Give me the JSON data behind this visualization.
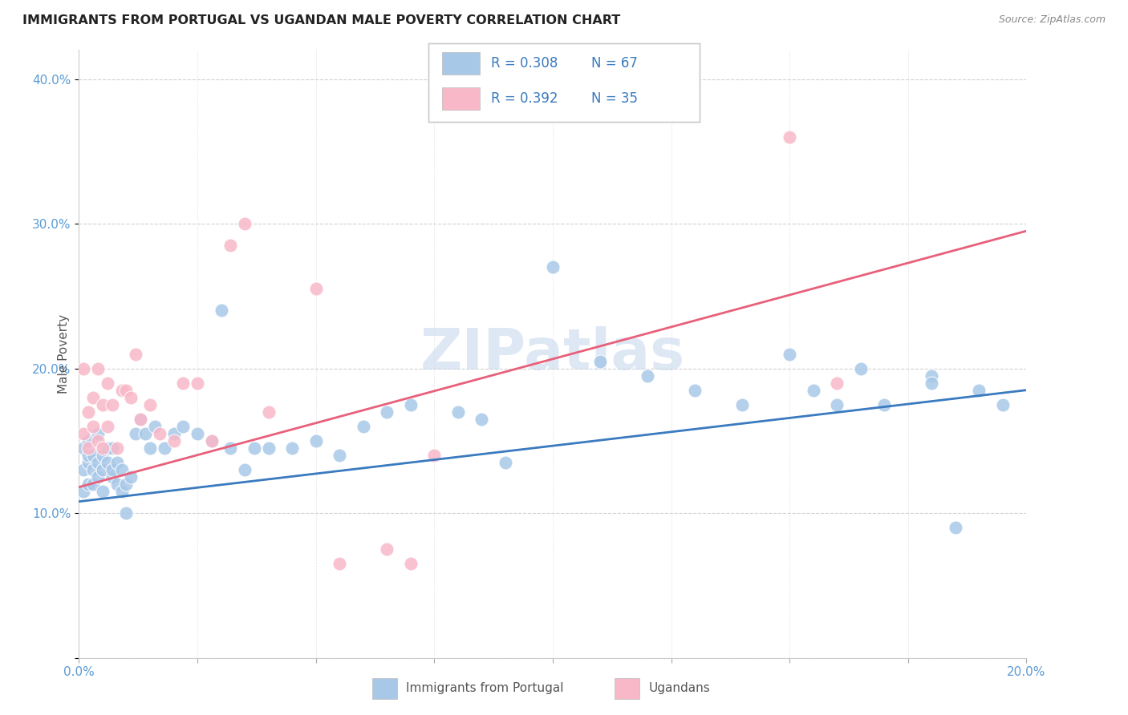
{
  "title": "IMMIGRANTS FROM PORTUGAL VS UGANDAN MALE POVERTY CORRELATION CHART",
  "source": "Source: ZipAtlas.com",
  "ylabel": "Male Poverty",
  "ytick_positions": [
    0.0,
    0.1,
    0.2,
    0.3,
    0.4
  ],
  "ytick_labels": [
    "",
    "10.0%",
    "20.0%",
    "30.0%",
    "40.0%"
  ],
  "xtick_positions": [
    0.0,
    0.025,
    0.05,
    0.075,
    0.1,
    0.125,
    0.15,
    0.175,
    0.2
  ],
  "xlim": [
    0.0,
    0.2
  ],
  "ylim": [
    0.0,
    0.42
  ],
  "blue_color": "#a8c8e8",
  "pink_color": "#f8b8c8",
  "blue_line_color": "#3a7abf",
  "pink_line_color": "#e8607a",
  "legend_blue_R": "0.308",
  "legend_blue_N": "67",
  "legend_pink_R": "0.392",
  "legend_pink_N": "35",
  "watermark": "ZIPatlas",
  "blue_scatter_x": [
    0.001,
    0.001,
    0.001,
    0.002,
    0.002,
    0.002,
    0.002,
    0.003,
    0.003,
    0.003,
    0.004,
    0.004,
    0.004,
    0.005,
    0.005,
    0.005,
    0.006,
    0.006,
    0.007,
    0.007,
    0.007,
    0.008,
    0.008,
    0.009,
    0.009,
    0.01,
    0.01,
    0.011,
    0.012,
    0.013,
    0.014,
    0.015,
    0.016,
    0.018,
    0.02,
    0.022,
    0.025,
    0.028,
    0.03,
    0.032,
    0.035,
    0.037,
    0.04,
    0.045,
    0.05,
    0.055,
    0.06,
    0.065,
    0.07,
    0.08,
    0.085,
    0.09,
    0.1,
    0.11,
    0.12,
    0.13,
    0.14,
    0.15,
    0.155,
    0.16,
    0.17,
    0.18,
    0.185,
    0.19,
    0.195,
    0.18,
    0.165
  ],
  "blue_scatter_y": [
    0.115,
    0.13,
    0.145,
    0.12,
    0.135,
    0.14,
    0.15,
    0.12,
    0.13,
    0.14,
    0.125,
    0.135,
    0.155,
    0.13,
    0.14,
    0.115,
    0.135,
    0.145,
    0.125,
    0.13,
    0.145,
    0.12,
    0.135,
    0.115,
    0.13,
    0.12,
    0.1,
    0.125,
    0.155,
    0.165,
    0.155,
    0.145,
    0.16,
    0.145,
    0.155,
    0.16,
    0.155,
    0.15,
    0.24,
    0.145,
    0.13,
    0.145,
    0.145,
    0.145,
    0.15,
    0.14,
    0.16,
    0.17,
    0.175,
    0.17,
    0.165,
    0.135,
    0.27,
    0.205,
    0.195,
    0.185,
    0.175,
    0.21,
    0.185,
    0.175,
    0.175,
    0.195,
    0.09,
    0.185,
    0.175,
    0.19,
    0.2
  ],
  "pink_scatter_x": [
    0.001,
    0.001,
    0.002,
    0.002,
    0.003,
    0.003,
    0.004,
    0.004,
    0.005,
    0.005,
    0.006,
    0.006,
    0.007,
    0.008,
    0.009,
    0.01,
    0.011,
    0.012,
    0.013,
    0.015,
    0.017,
    0.02,
    0.022,
    0.025,
    0.028,
    0.032,
    0.035,
    0.04,
    0.05,
    0.055,
    0.065,
    0.07,
    0.075,
    0.15,
    0.16
  ],
  "pink_scatter_y": [
    0.155,
    0.2,
    0.145,
    0.17,
    0.16,
    0.18,
    0.15,
    0.2,
    0.145,
    0.175,
    0.16,
    0.19,
    0.175,
    0.145,
    0.185,
    0.185,
    0.18,
    0.21,
    0.165,
    0.175,
    0.155,
    0.15,
    0.19,
    0.19,
    0.15,
    0.285,
    0.3,
    0.17,
    0.255,
    0.065,
    0.075,
    0.065,
    0.14,
    0.36,
    0.19
  ],
  "blue_trendline_x": [
    0.0,
    0.2
  ],
  "blue_trendline_y": [
    0.108,
    0.185
  ],
  "pink_trendline_x": [
    0.0,
    0.2
  ],
  "pink_trendline_y": [
    0.118,
    0.295
  ],
  "grid_color": "#cccccc",
  "grid_linestyle": "--",
  "title_color": "#222222",
  "source_color": "#888888",
  "tick_color": "#5b9bd5",
  "ylabel_color": "#555555",
  "legend_text_color_R": "#3a7abf",
  "legend_text_color_N": "#3a7abf",
  "legend_border_color": "#cccccc",
  "bottom_legend_text_color": "#555555"
}
